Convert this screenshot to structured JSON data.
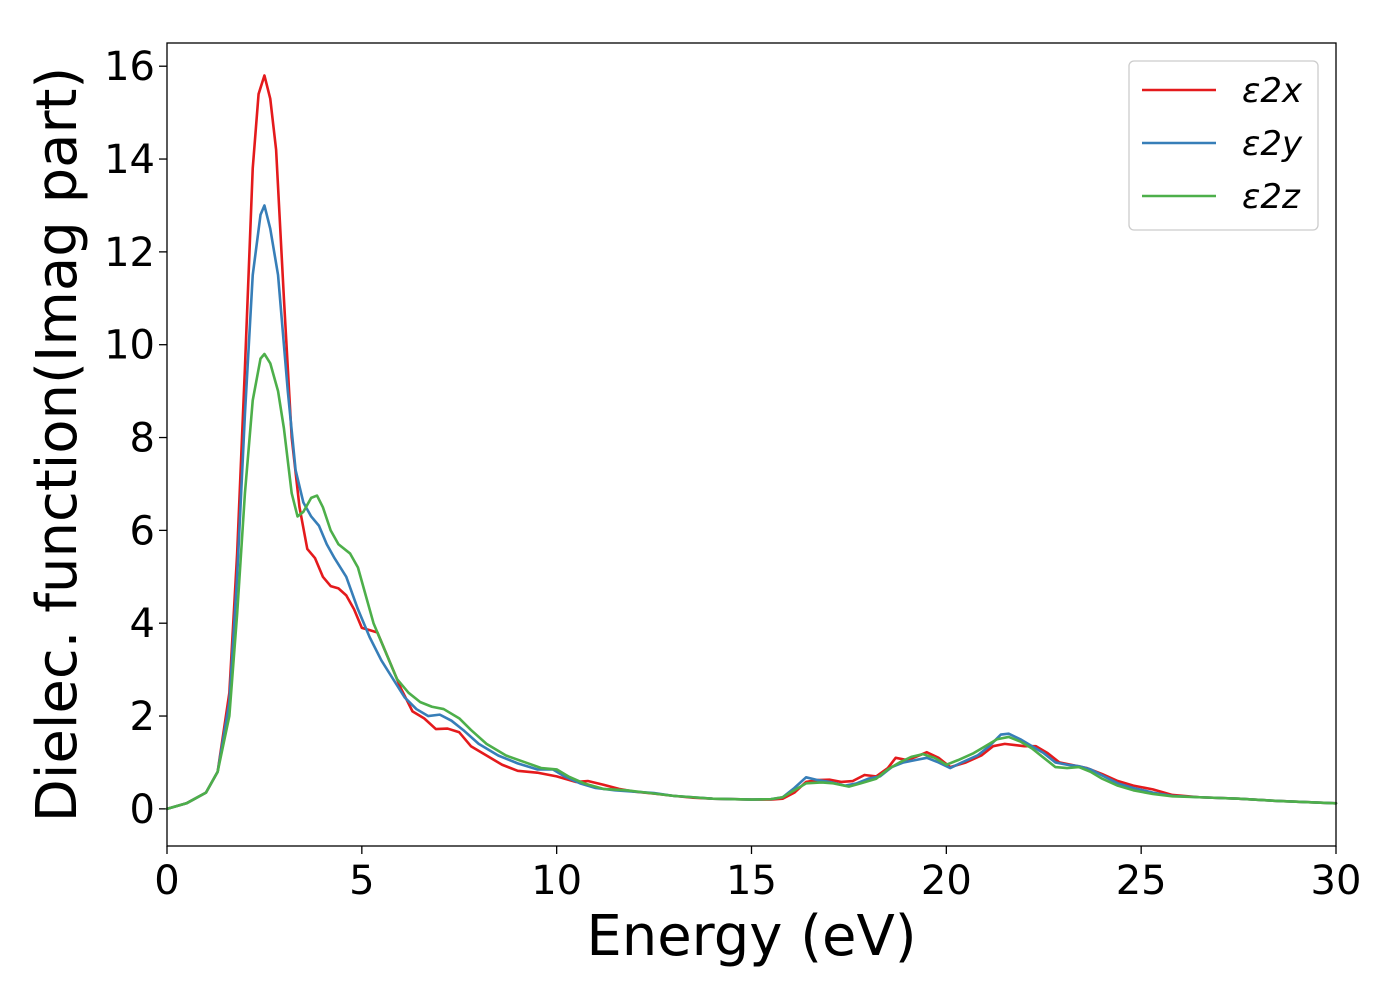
{
  "chart_data": {
    "type": "line",
    "xlabel": "Energy (eV)",
    "ylabel": "Dielec. function(Imag part)",
    "xlim": [
      0,
      30
    ],
    "ylim": [
      -0.8,
      16.5
    ],
    "xticks": [
      0,
      5,
      10,
      15,
      20,
      25,
      30
    ],
    "yticks": [
      0,
      2,
      4,
      6,
      8,
      10,
      12,
      14,
      16
    ],
    "grid": false,
    "legend_position": "top-right",
    "series": [
      {
        "name": "ε2x",
        "color": "#e41a1c",
        "points": [
          [
            0,
            0
          ],
          [
            0.5,
            0.12
          ],
          [
            1.0,
            0.35
          ],
          [
            1.3,
            0.8
          ],
          [
            1.6,
            2.5
          ],
          [
            1.8,
            5.5
          ],
          [
            2.0,
            9.5
          ],
          [
            2.2,
            13.8
          ],
          [
            2.35,
            15.4
          ],
          [
            2.5,
            15.8
          ],
          [
            2.65,
            15.3
          ],
          [
            2.8,
            14.2
          ],
          [
            3.0,
            11.0
          ],
          [
            3.2,
            8.0
          ],
          [
            3.4,
            6.5
          ],
          [
            3.6,
            5.6
          ],
          [
            3.8,
            5.4
          ],
          [
            4.0,
            5.0
          ],
          [
            4.2,
            4.8
          ],
          [
            4.4,
            4.75
          ],
          [
            4.6,
            4.6
          ],
          [
            4.8,
            4.3
          ],
          [
            5.0,
            3.9
          ],
          [
            5.2,
            3.85
          ],
          [
            5.4,
            3.8
          ],
          [
            5.6,
            3.4
          ],
          [
            6.0,
            2.6
          ],
          [
            6.3,
            2.1
          ],
          [
            6.6,
            1.95
          ],
          [
            6.9,
            1.72
          ],
          [
            7.2,
            1.73
          ],
          [
            7.5,
            1.65
          ],
          [
            7.8,
            1.35
          ],
          [
            8.2,
            1.15
          ],
          [
            8.6,
            0.95
          ],
          [
            9.0,
            0.82
          ],
          [
            9.5,
            0.78
          ],
          [
            10.0,
            0.7
          ],
          [
            10.5,
            0.58
          ],
          [
            10.8,
            0.6
          ],
          [
            11.2,
            0.52
          ],
          [
            11.6,
            0.43
          ],
          [
            12.0,
            0.37
          ],
          [
            12.5,
            0.33
          ],
          [
            13.0,
            0.28
          ],
          [
            13.5,
            0.24
          ],
          [
            14.0,
            0.22
          ],
          [
            15.0,
            0.2
          ],
          [
            15.5,
            0.2
          ],
          [
            15.8,
            0.22
          ],
          [
            16.1,
            0.35
          ],
          [
            16.4,
            0.58
          ],
          [
            16.7,
            0.62
          ],
          [
            17.0,
            0.63
          ],
          [
            17.3,
            0.58
          ],
          [
            17.6,
            0.6
          ],
          [
            17.9,
            0.73
          ],
          [
            18.2,
            0.7
          ],
          [
            18.5,
            0.88
          ],
          [
            18.7,
            1.1
          ],
          [
            19.0,
            1.05
          ],
          [
            19.3,
            1.15
          ],
          [
            19.5,
            1.22
          ],
          [
            19.8,
            1.1
          ],
          [
            20.1,
            0.9
          ],
          [
            20.5,
            1.0
          ],
          [
            20.9,
            1.15
          ],
          [
            21.2,
            1.35
          ],
          [
            21.5,
            1.4
          ],
          [
            22.0,
            1.35
          ],
          [
            22.3,
            1.35
          ],
          [
            22.6,
            1.2
          ],
          [
            22.9,
            1.0
          ],
          [
            23.2,
            0.95
          ],
          [
            23.6,
            0.88
          ],
          [
            24.0,
            0.75
          ],
          [
            24.4,
            0.6
          ],
          [
            24.8,
            0.5
          ],
          [
            25.3,
            0.42
          ],
          [
            25.8,
            0.3
          ],
          [
            26.5,
            0.25
          ],
          [
            27.5,
            0.22
          ],
          [
            28.5,
            0.17
          ],
          [
            30,
            0.12
          ]
        ]
      },
      {
        "name": "ε2y",
        "color": "#377eb8",
        "points": [
          [
            0,
            0
          ],
          [
            0.5,
            0.12
          ],
          [
            1.0,
            0.35
          ],
          [
            1.3,
            0.8
          ],
          [
            1.6,
            2.3
          ],
          [
            1.8,
            5.0
          ],
          [
            2.0,
            8.5
          ],
          [
            2.2,
            11.5
          ],
          [
            2.4,
            12.8
          ],
          [
            2.5,
            13.0
          ],
          [
            2.65,
            12.5
          ],
          [
            2.85,
            11.5
          ],
          [
            3.1,
            9.0
          ],
          [
            3.3,
            7.3
          ],
          [
            3.5,
            6.6
          ],
          [
            3.7,
            6.3
          ],
          [
            3.9,
            6.1
          ],
          [
            4.1,
            5.7
          ],
          [
            4.3,
            5.4
          ],
          [
            4.6,
            5.0
          ],
          [
            4.9,
            4.3
          ],
          [
            5.2,
            3.7
          ],
          [
            5.5,
            3.2
          ],
          [
            5.8,
            2.8
          ],
          [
            6.1,
            2.4
          ],
          [
            6.4,
            2.15
          ],
          [
            6.7,
            2.0
          ],
          [
            7.0,
            2.03
          ],
          [
            7.3,
            1.9
          ],
          [
            7.6,
            1.7
          ],
          [
            8.0,
            1.4
          ],
          [
            8.5,
            1.15
          ],
          [
            9.0,
            0.98
          ],
          [
            9.5,
            0.85
          ],
          [
            9.9,
            0.85
          ],
          [
            10.2,
            0.7
          ],
          [
            10.6,
            0.55
          ],
          [
            11.0,
            0.45
          ],
          [
            11.5,
            0.4
          ],
          [
            12.0,
            0.37
          ],
          [
            12.5,
            0.34
          ],
          [
            13.0,
            0.28
          ],
          [
            13.5,
            0.25
          ],
          [
            14.0,
            0.22
          ],
          [
            15.0,
            0.2
          ],
          [
            15.5,
            0.21
          ],
          [
            15.8,
            0.25
          ],
          [
            16.1,
            0.45
          ],
          [
            16.4,
            0.68
          ],
          [
            16.7,
            0.62
          ],
          [
            17.0,
            0.58
          ],
          [
            17.4,
            0.5
          ],
          [
            17.7,
            0.55
          ],
          [
            18.0,
            0.65
          ],
          [
            18.3,
            0.7
          ],
          [
            18.6,
            0.9
          ],
          [
            18.9,
            1.0
          ],
          [
            19.2,
            1.05
          ],
          [
            19.5,
            1.1
          ],
          [
            19.8,
            1.0
          ],
          [
            20.1,
            0.88
          ],
          [
            20.4,
            1.0
          ],
          [
            20.8,
            1.15
          ],
          [
            21.1,
            1.35
          ],
          [
            21.4,
            1.6
          ],
          [
            21.6,
            1.62
          ],
          [
            21.9,
            1.5
          ],
          [
            22.2,
            1.35
          ],
          [
            22.5,
            1.2
          ],
          [
            22.8,
            1.0
          ],
          [
            23.1,
            0.95
          ],
          [
            23.4,
            0.92
          ],
          [
            23.7,
            0.85
          ],
          [
            24.0,
            0.72
          ],
          [
            24.4,
            0.55
          ],
          [
            24.8,
            0.45
          ],
          [
            25.3,
            0.35
          ],
          [
            25.8,
            0.28
          ],
          [
            26.5,
            0.25
          ],
          [
            27.5,
            0.22
          ],
          [
            28.5,
            0.17
          ],
          [
            30,
            0.12
          ]
        ]
      },
      {
        "name": "ε2z",
        "color": "#4daf4a",
        "points": [
          [
            0,
            0
          ],
          [
            0.5,
            0.12
          ],
          [
            1.0,
            0.35
          ],
          [
            1.3,
            0.8
          ],
          [
            1.6,
            2.0
          ],
          [
            1.8,
            4.2
          ],
          [
            2.0,
            6.8
          ],
          [
            2.2,
            8.8
          ],
          [
            2.4,
            9.7
          ],
          [
            2.5,
            9.8
          ],
          [
            2.65,
            9.6
          ],
          [
            2.85,
            9.0
          ],
          [
            3.0,
            8.2
          ],
          [
            3.2,
            6.8
          ],
          [
            3.35,
            6.3
          ],
          [
            3.5,
            6.4
          ],
          [
            3.7,
            6.7
          ],
          [
            3.85,
            6.75
          ],
          [
            4.0,
            6.5
          ],
          [
            4.2,
            6.0
          ],
          [
            4.4,
            5.7
          ],
          [
            4.7,
            5.5
          ],
          [
            4.9,
            5.2
          ],
          [
            5.1,
            4.6
          ],
          [
            5.3,
            4.0
          ],
          [
            5.6,
            3.4
          ],
          [
            5.9,
            2.8
          ],
          [
            6.2,
            2.5
          ],
          [
            6.5,
            2.3
          ],
          [
            6.8,
            2.2
          ],
          [
            7.1,
            2.15
          ],
          [
            7.5,
            1.95
          ],
          [
            7.8,
            1.7
          ],
          [
            8.2,
            1.4
          ],
          [
            8.7,
            1.15
          ],
          [
            9.2,
            1.0
          ],
          [
            9.6,
            0.88
          ],
          [
            10.0,
            0.85
          ],
          [
            10.3,
            0.7
          ],
          [
            10.7,
            0.55
          ],
          [
            11.2,
            0.43
          ],
          [
            11.8,
            0.4
          ],
          [
            12.3,
            0.35
          ],
          [
            13.0,
            0.28
          ],
          [
            13.5,
            0.25
          ],
          [
            14.0,
            0.22
          ],
          [
            15.0,
            0.2
          ],
          [
            15.5,
            0.21
          ],
          [
            15.8,
            0.25
          ],
          [
            16.1,
            0.4
          ],
          [
            16.4,
            0.55
          ],
          [
            16.8,
            0.57
          ],
          [
            17.1,
            0.55
          ],
          [
            17.5,
            0.48
          ],
          [
            17.8,
            0.55
          ],
          [
            18.2,
            0.65
          ],
          [
            18.5,
            0.85
          ],
          [
            18.8,
            1.0
          ],
          [
            19.1,
            1.12
          ],
          [
            19.4,
            1.18
          ],
          [
            19.7,
            1.1
          ],
          [
            20.0,
            0.95
          ],
          [
            20.3,
            1.05
          ],
          [
            20.7,
            1.2
          ],
          [
            21.0,
            1.35
          ],
          [
            21.3,
            1.5
          ],
          [
            21.6,
            1.55
          ],
          [
            21.9,
            1.45
          ],
          [
            22.2,
            1.3
          ],
          [
            22.5,
            1.1
          ],
          [
            22.8,
            0.9
          ],
          [
            23.1,
            0.88
          ],
          [
            23.4,
            0.9
          ],
          [
            23.7,
            0.8
          ],
          [
            24.0,
            0.65
          ],
          [
            24.4,
            0.5
          ],
          [
            24.8,
            0.4
          ],
          [
            25.3,
            0.32
          ],
          [
            25.8,
            0.27
          ],
          [
            26.5,
            0.25
          ],
          [
            27.5,
            0.22
          ],
          [
            28.5,
            0.17
          ],
          [
            30,
            0.12
          ]
        ]
      }
    ]
  }
}
